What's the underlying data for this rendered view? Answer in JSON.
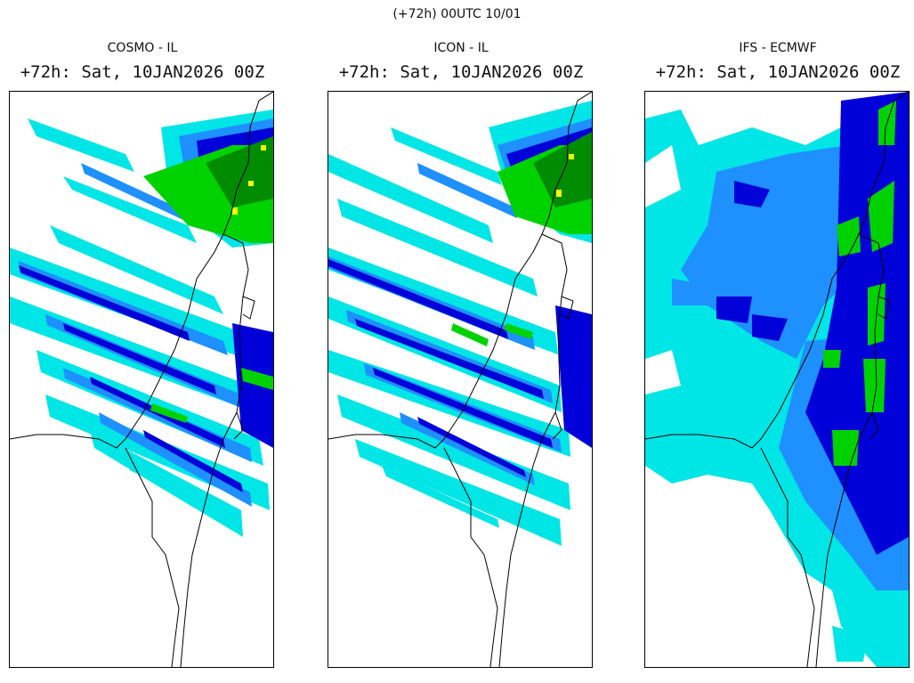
{
  "header": {
    "title": "(+72h) 00UTC 10/01"
  },
  "colors": {
    "light": "#00e5e5",
    "mid": "#1e90ff",
    "dark": "#0000d8",
    "green": "#00d200",
    "darkgreen": "#008c00",
    "yellow": "#ffff00",
    "coast": "#000000"
  },
  "panels": [
    {
      "id": "cosmo",
      "model": "COSMO - IL",
      "valid": "+72h: Sat, 10JAN2026 00Z"
    },
    {
      "id": "icon",
      "model": "ICON - IL",
      "valid": "+72h: Sat, 10JAN2026 00Z"
    },
    {
      "id": "ifs",
      "model": "IFS - ECMWF",
      "valid": "+72h: Sat, 10JAN2026 00Z"
    }
  ]
}
